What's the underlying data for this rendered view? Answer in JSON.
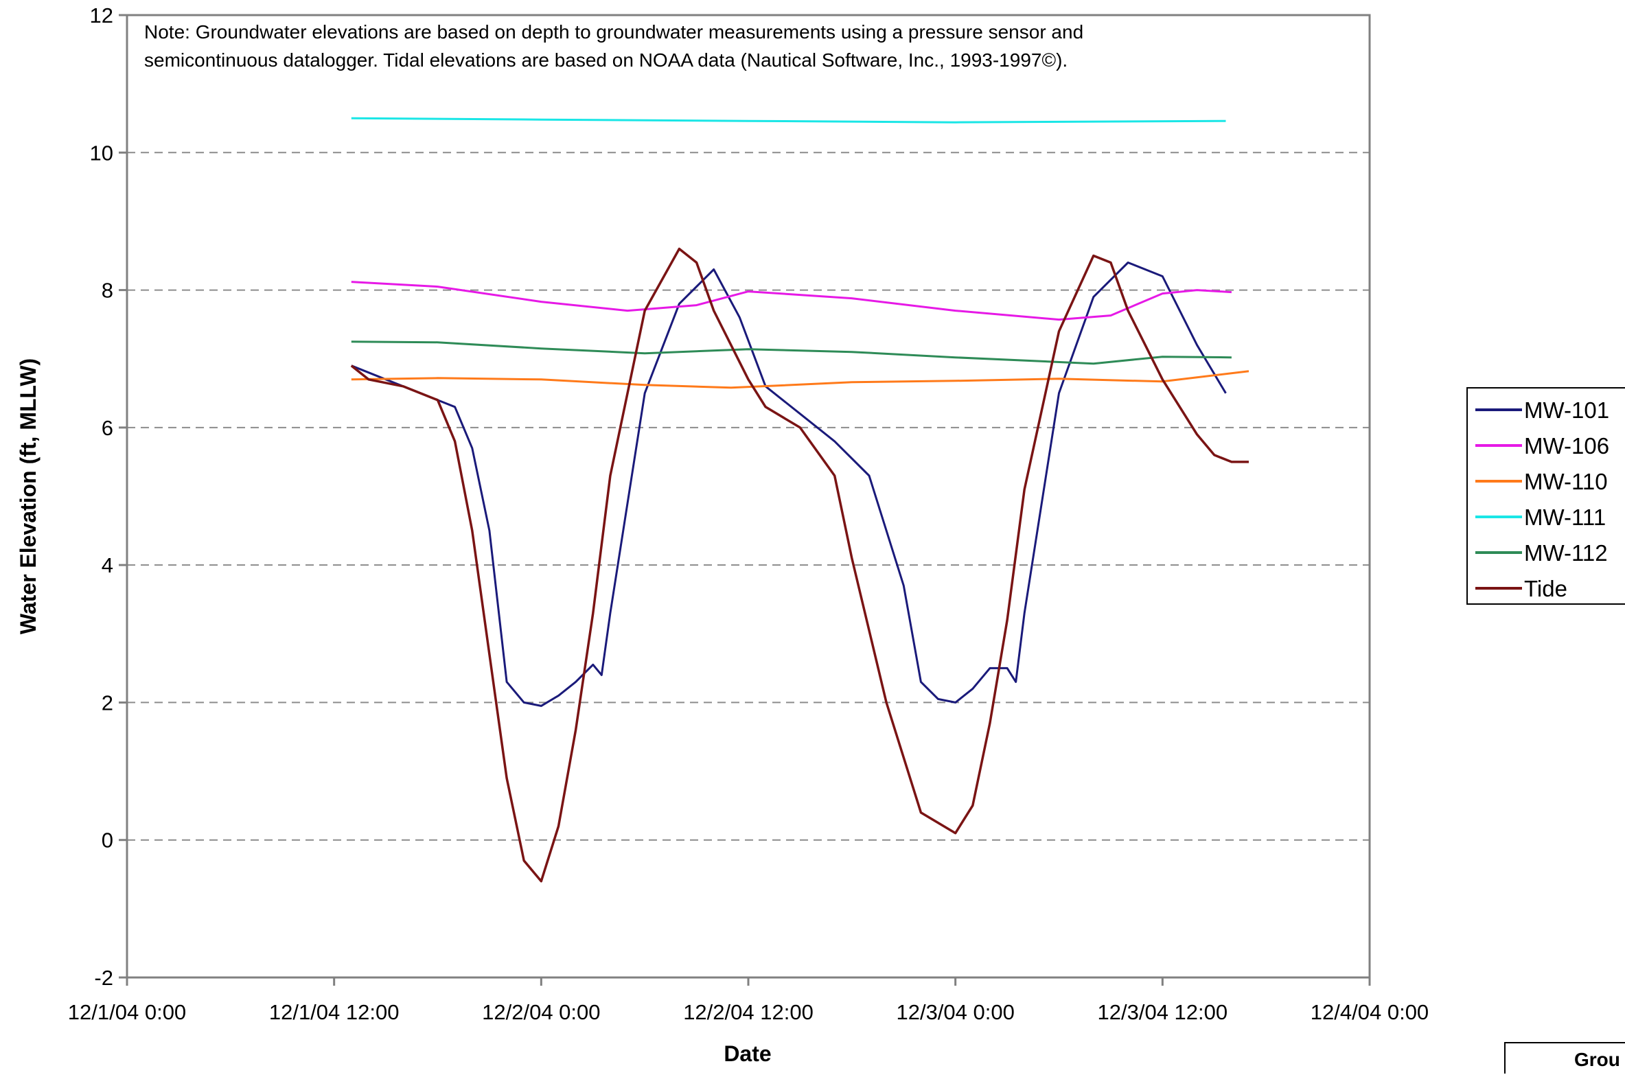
{
  "chart_data": {
    "type": "line",
    "note": {
      "line1": "Note:  Groundwater elevations are based on depth to groundwater measurements using a pressure sensor and",
      "line2": "semicontinuous datalogger.  Tidal elevations are based on NOAA data (Nautical Software, Inc., 1993-1997©)."
    },
    "xlabel": "Date",
    "ylabel": "Water Elevation (ft, MLLW)",
    "footer_text": "Grou",
    "ylim": [
      -2,
      12
    ],
    "yticks": [
      -2,
      0,
      2,
      4,
      6,
      8,
      10,
      12
    ],
    "xlim": [
      "12/1/04 0:00",
      "12/4/04 0:00"
    ],
    "xticks": [
      "12/1/04 0:00",
      "12/1/04 12:00",
      "12/2/04 0:00",
      "12/2/04 12:00",
      "12/3/04 0:00",
      "12/3/04 12:00",
      "12/4/04 0:00"
    ],
    "grid": "horizontal dashed at y ticks",
    "legend_position": "right",
    "series": [
      {
        "name": "MW-101",
        "color": "#1a1a7a",
        "x": [
          "12/1/04 13:00",
          "12/1/04 15:00",
          "12/1/04 17:00",
          "12/1/04 19:00",
          "12/1/04 20:00",
          "12/1/04 21:00",
          "12/1/04 22:00",
          "12/1/04 23:00",
          "12/2/04 0:00",
          "12/2/04 1:00",
          "12/2/04 2:00",
          "12/2/04 3:00",
          "12/2/04 3:30",
          "12/2/04 4:00",
          "12/2/04 6:00",
          "12/2/04 8:00",
          "12/2/04 10:00",
          "12/2/04 11:30",
          "12/2/04 13:00",
          "12/2/04 15:00",
          "12/2/04 17:00",
          "12/2/04 19:00",
          "12/2/04 21:00",
          "12/2/04 22:00",
          "12/2/04 23:00",
          "12/3/04 0:00",
          "12/3/04 1:00",
          "12/3/04 2:00",
          "12/3/04 3:00",
          "12/3/04 3:30",
          "12/3/04 4:00",
          "12/3/04 6:00",
          "12/3/04 8:00",
          "12/3/04 10:00",
          "12/3/04 12:00",
          "12/3/04 14:00",
          "12/3/04 15:40"
        ],
        "y": [
          6.9,
          6.7,
          6.5,
          6.3,
          5.7,
          4.5,
          2.3,
          2.0,
          1.95,
          2.1,
          2.3,
          2.55,
          2.4,
          3.3,
          6.5,
          7.8,
          8.3,
          7.6,
          6.6,
          6.2,
          5.8,
          5.3,
          3.7,
          2.3,
          2.05,
          2.0,
          2.2,
          2.5,
          2.5,
          2.3,
          3.3,
          6.5,
          7.9,
          8.4,
          8.2,
          7.2,
          6.5
        ]
      },
      {
        "name": "MW-106",
        "color": "#e619e6",
        "x": [
          "12/1/04 13:00",
          "12/1/04 18:00",
          "12/2/04 0:00",
          "12/2/04 5:00",
          "12/2/04 9:00",
          "12/2/04 12:00",
          "12/2/04 18:00",
          "12/3/04 0:00",
          "12/3/04 6:00",
          "12/3/04 9:00",
          "12/3/04 12:00",
          "12/3/04 14:00",
          "12/3/04 16:00"
        ],
        "y": [
          8.12,
          8.05,
          7.83,
          7.7,
          7.78,
          7.98,
          7.88,
          7.7,
          7.57,
          7.63,
          7.95,
          8.0,
          7.97
        ]
      },
      {
        "name": "MW-110",
        "color": "#ff7a1a",
        "x": [
          "12/1/04 13:00",
          "12/1/04 18:00",
          "12/2/04 0:00",
          "12/2/04 6:00",
          "12/2/04 11:00",
          "12/2/04 18:00",
          "12/3/04 0:00",
          "12/3/04 6:00",
          "12/3/04 12:00",
          "12/3/04 14:00",
          "12/3/04 17:00"
        ],
        "y": [
          6.7,
          6.72,
          6.7,
          6.62,
          6.58,
          6.66,
          6.68,
          6.71,
          6.67,
          6.73,
          6.82
        ]
      },
      {
        "name": "MW-111",
        "color": "#1ae6e6",
        "x": [
          "12/1/04 13:00",
          "12/2/04 0:00",
          "12/2/04 12:00",
          "12/3/04 0:00",
          "12/3/04 15:40"
        ],
        "y": [
          10.5,
          10.48,
          10.46,
          10.44,
          10.46
        ]
      },
      {
        "name": "MW-112",
        "color": "#2e8b57",
        "x": [
          "12/1/04 13:00",
          "12/1/04 18:00",
          "12/2/04 0:00",
          "12/2/04 6:00",
          "12/2/04 12:00",
          "12/2/04 18:00",
          "12/3/04 0:00",
          "12/3/04 8:00",
          "12/3/04 12:00",
          "12/3/04 16:00"
        ],
        "y": [
          7.25,
          7.24,
          7.15,
          7.08,
          7.14,
          7.1,
          7.02,
          6.93,
          7.03,
          7.02
        ]
      },
      {
        "name": "Tide",
        "color": "#7a1414",
        "x": [
          "12/1/04 13:00",
          "12/1/04 14:00",
          "12/1/04 16:00",
          "12/1/04 18:00",
          "12/1/04 19:00",
          "12/1/04 20:00",
          "12/1/04 21:00",
          "12/1/04 22:00",
          "12/1/04 23:00",
          "12/2/04 0:00",
          "12/2/04 1:00",
          "12/2/04 2:00",
          "12/2/04 3:00",
          "12/2/04 4:00",
          "12/2/04 6:00",
          "12/2/04 8:00",
          "12/2/04 9:00",
          "12/2/04 10:00",
          "12/2/04 12:00",
          "12/2/04 13:00",
          "12/2/04 15:00",
          "12/2/04 17:00",
          "12/2/04 18:00",
          "12/2/04 20:00",
          "12/2/04 22:00",
          "12/3/04 0:00",
          "12/3/04 1:00",
          "12/3/04 2:00",
          "12/3/04 3:00",
          "12/3/04 4:00",
          "12/3/04 6:00",
          "12/3/04 8:00",
          "12/3/04 9:00",
          "12/3/04 10:00",
          "12/3/04 12:00",
          "12/3/04 14:00",
          "12/3/04 15:00",
          "12/3/04 16:00",
          "12/3/04 17:00"
        ],
        "y": [
          6.9,
          6.7,
          6.6,
          6.4,
          5.8,
          4.5,
          2.7,
          0.9,
          -0.3,
          -0.6,
          0.2,
          1.6,
          3.3,
          5.3,
          7.7,
          8.6,
          8.4,
          7.7,
          6.7,
          6.3,
          6.0,
          5.3,
          4.1,
          2.0,
          0.4,
          0.1,
          0.5,
          1.7,
          3.2,
          5.1,
          7.4,
          8.5,
          8.4,
          7.7,
          6.7,
          5.9,
          5.6,
          5.5,
          5.5
        ]
      }
    ]
  }
}
